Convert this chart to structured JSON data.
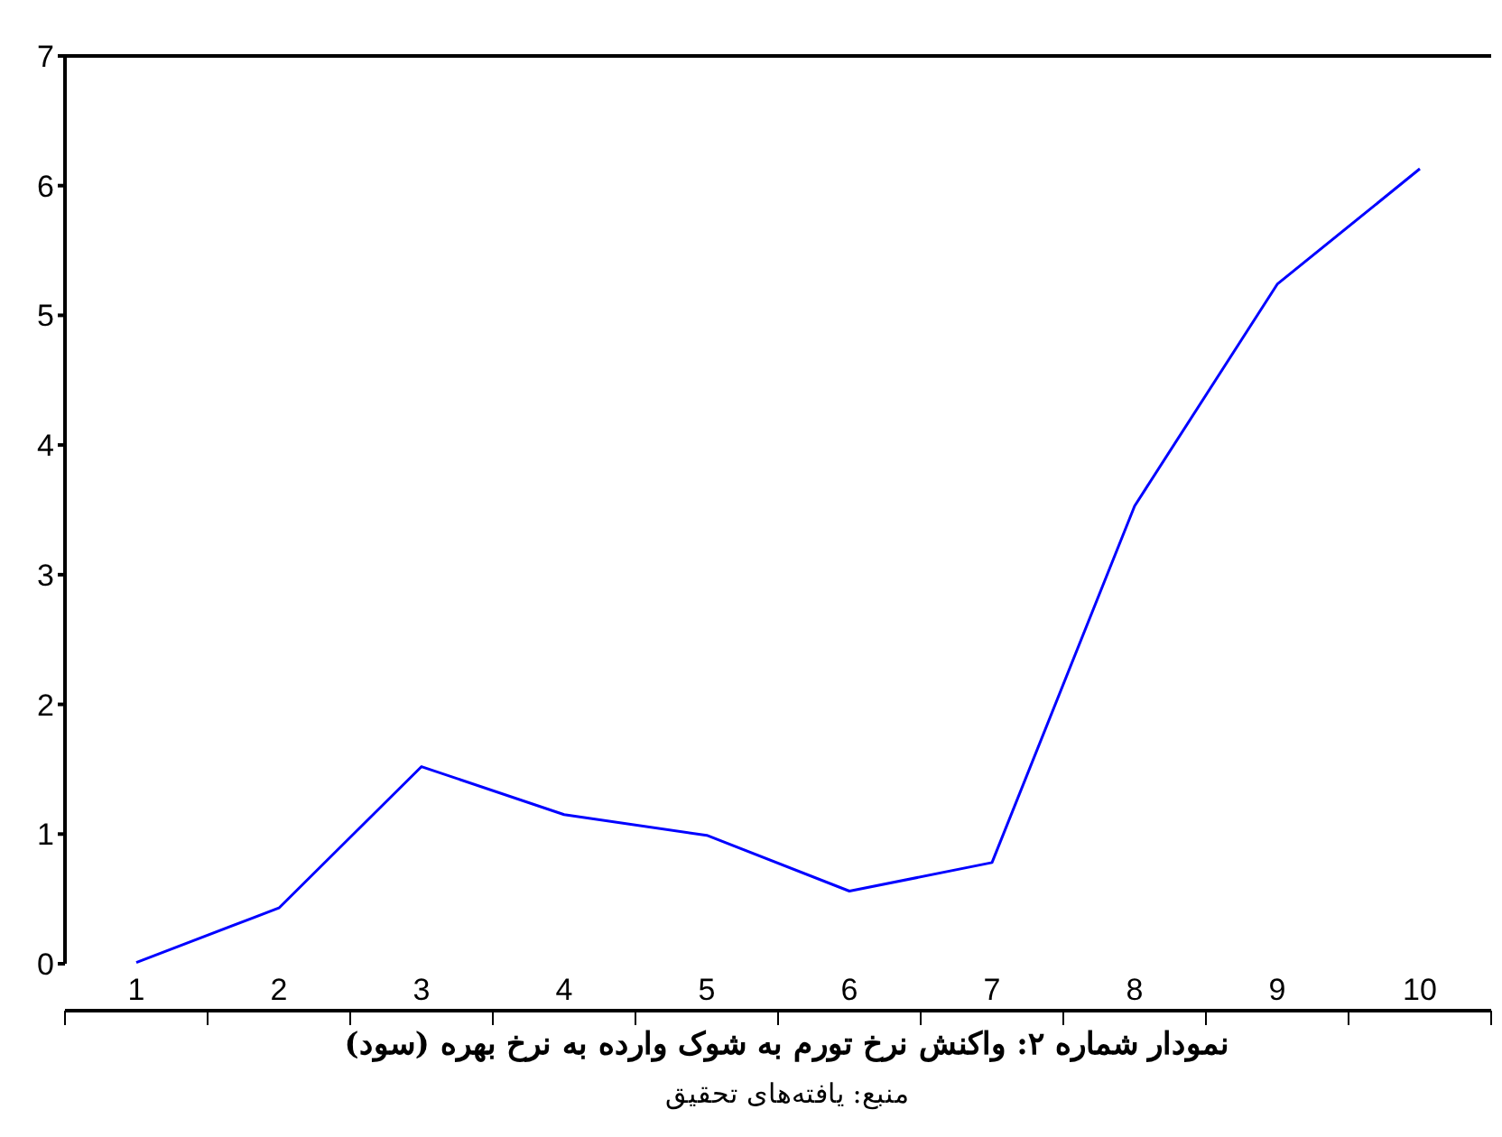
{
  "chart_data": {
    "type": "line",
    "title": "نمودار شماره ۲:  واکنش نرخ تورم به شوک وارده به نرخ بهره (سود)",
    "annotations": [
      "منبع: یافته‌های تحقیق"
    ],
    "categories": [
      "1",
      "2",
      "3",
      "4",
      "5",
      "6",
      "7",
      "8",
      "9",
      "10"
    ],
    "series": [
      {
        "color": "#0000ff",
        "values": [
          0.01,
          0.43,
          1.52,
          1.15,
          0.99,
          0.56,
          0.78,
          3.53,
          5.24,
          6.13
        ]
      }
    ],
    "ylim": [
      0,
      7
    ],
    "yticks": [
      0,
      1,
      2,
      3,
      4,
      5,
      6,
      7
    ],
    "grid": false,
    "marker": "none",
    "line_style": "solid"
  }
}
